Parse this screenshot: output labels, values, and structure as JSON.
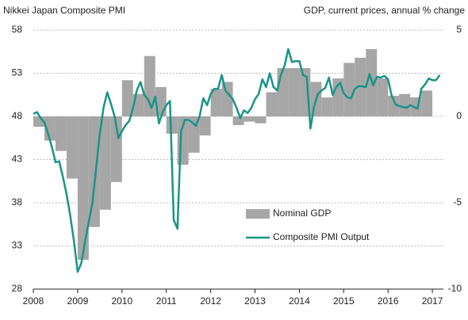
{
  "chart_data": {
    "type": "bar",
    "y_label": "Nikkei Japan Composite PMI",
    "y2_label": "GDP, current prices, annual % change",
    "xlim": [
      2008,
      2017.25
    ],
    "xticks": [
      2008,
      2009,
      2010,
      2011,
      2012,
      2013,
      2014,
      2015,
      2016,
      2017
    ],
    "ylim": [
      28,
      58
    ],
    "yticks": [
      28,
      33,
      38,
      43,
      48,
      53,
      58
    ],
    "y2lim": [
      -10,
      5
    ],
    "y2ticks": [
      -10,
      -5,
      0,
      5
    ],
    "grid": true,
    "legend": "center",
    "series": [
      {
        "name": "Nominal GDP",
        "type": "bar",
        "axis": "y2",
        "color": "#a6a6a6",
        "x": [
          2008,
          2008.25,
          2008.5,
          2008.75,
          2009,
          2009.25,
          2009.5,
          2009.75,
          2010,
          2010.25,
          2010.5,
          2010.75,
          2011,
          2011.25,
          2011.5,
          2011.75,
          2012,
          2012.25,
          2012.5,
          2012.75,
          2013,
          2013.25,
          2013.5,
          2013.75,
          2014,
          2014.25,
          2014.5,
          2014.75,
          2015,
          2015.25,
          2015.5,
          2015.75,
          2016,
          2016.25,
          2016.5,
          2016.75
        ],
        "values": [
          -0.6,
          -1.4,
          -2.0,
          -3.6,
          -8.3,
          -6.4,
          -5.4,
          -3.8,
          2.1,
          1.3,
          3.5,
          1.7,
          -1.0,
          -2.8,
          -2.1,
          -1.1,
          1.6,
          2.0,
          -0.5,
          -0.3,
          -0.4,
          1.4,
          2.8,
          2.8,
          2.8,
          2.0,
          1.1,
          2.2,
          3.1,
          3.4,
          3.9,
          2.2,
          1.2,
          1.3,
          1.1,
          1.5
        ]
      },
      {
        "name": "Composite PMI Output",
        "type": "line",
        "color": "#1a9488",
        "x": [
          2008,
          2008.083,
          2008.167,
          2008.25,
          2008.333,
          2008.417,
          2008.5,
          2008.583,
          2008.667,
          2008.75,
          2008.833,
          2008.917,
          2009,
          2009.083,
          2009.167,
          2009.25,
          2009.333,
          2009.417,
          2009.5,
          2009.583,
          2009.667,
          2009.75,
          2009.833,
          2009.917,
          2010,
          2010.083,
          2010.167,
          2010.25,
          2010.333,
          2010.417,
          2010.5,
          2010.583,
          2010.667,
          2010.75,
          2010.833,
          2010.917,
          2011,
          2011.083,
          2011.167,
          2011.25,
          2011.333,
          2011.417,
          2011.5,
          2011.583,
          2011.667,
          2011.75,
          2011.833,
          2011.917,
          2012,
          2012.083,
          2012.167,
          2012.25,
          2012.333,
          2012.417,
          2012.5,
          2012.583,
          2012.667,
          2012.75,
          2012.833,
          2012.917,
          2013,
          2013.083,
          2013.167,
          2013.25,
          2013.333,
          2013.417,
          2013.5,
          2013.583,
          2013.667,
          2013.75,
          2013.833,
          2013.917,
          2014,
          2014.083,
          2014.167,
          2014.25,
          2014.333,
          2014.417,
          2014.5,
          2014.583,
          2014.667,
          2014.75,
          2014.833,
          2014.917,
          2015,
          2015.083,
          2015.167,
          2015.25,
          2015.333,
          2015.417,
          2015.5,
          2015.583,
          2015.667,
          2015.75,
          2015.833,
          2015.917,
          2016,
          2016.083,
          2016.167,
          2016.25,
          2016.333,
          2016.417,
          2016.5,
          2016.583,
          2016.667,
          2016.75,
          2016.833,
          2016.917,
          2017,
          2017.083,
          2017.167
        ],
        "values": [
          48.3,
          48.5,
          47.8,
          47.3,
          46.0,
          44.5,
          42.7,
          42.8,
          41.0,
          39.0,
          36.5,
          33.5,
          30.0,
          31.0,
          33.5,
          35.8,
          38.0,
          42.0,
          46.0,
          49.0,
          50.8,
          49.5,
          48.0,
          45.5,
          46.3,
          47.0,
          47.5,
          49.0,
          51.0,
          52.0,
          50.5,
          50.0,
          49.0,
          50.3,
          47.2,
          48.5,
          49.3,
          49.8,
          36.0,
          35.0,
          46.3,
          47.6,
          47.6,
          47.3,
          46.9,
          48.0,
          50.1,
          49.3,
          50.6,
          51.2,
          51.2,
          52.8,
          51.0,
          50.5,
          50.0,
          49.0,
          47.8,
          48.7,
          48.4,
          49.0,
          50.0,
          50.6,
          52.3,
          51.4,
          53.0,
          51.4,
          51.0,
          52.8,
          53.9,
          55.8,
          54.3,
          54.4,
          54.4,
          52.8,
          52.6,
          46.6,
          49.2,
          50.6,
          51.0,
          51.3,
          52.5,
          50.5,
          51.4,
          51.9,
          50.7,
          50.2,
          50.1,
          51.2,
          51.5,
          51.5,
          51.4,
          52.9,
          51.6,
          52.6,
          52.5,
          52.7,
          52.3,
          50.4,
          49.4,
          49.2,
          49.1,
          49.0,
          49.3,
          49.1,
          48.9,
          51.2,
          51.7,
          52.4,
          52.2,
          52.2,
          52.8
        ]
      }
    ]
  }
}
